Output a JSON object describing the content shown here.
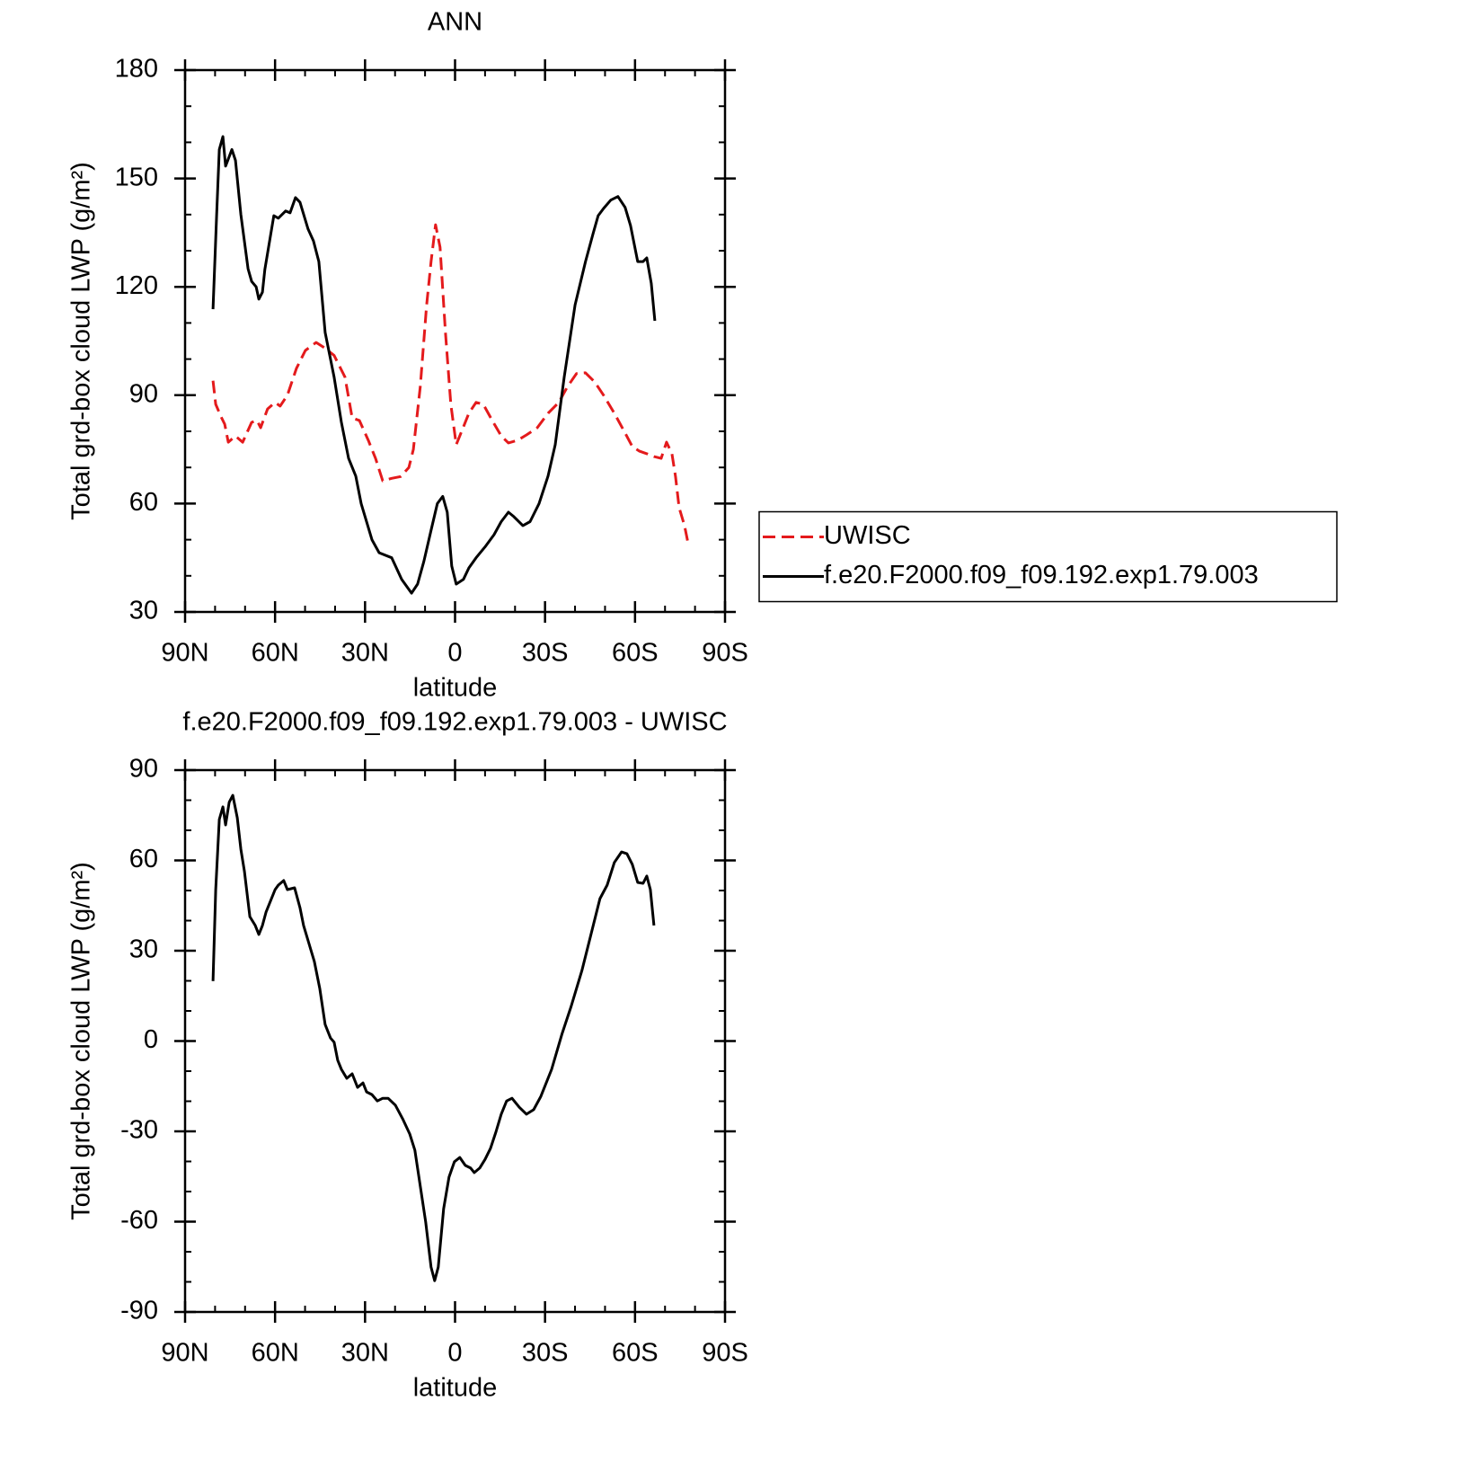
{
  "chart_data": [
    {
      "type": "line",
      "title": "ANN",
      "x_label": "latitude",
      "y_label": "Total grd-box cloud LWP (g/m²)",
      "xlim": [
        90,
        -90
      ],
      "xticks": [
        {
          "value": 90,
          "label": "90N"
        },
        {
          "value": 60,
          "label": "60N"
        },
        {
          "value": 30,
          "label": "30N"
        },
        0,
        {
          "value": -30,
          "label": "30S"
        },
        {
          "value": -60,
          "label": "60S"
        },
        {
          "value": -90,
          "label": "90S"
        }
      ],
      "ylim": [
        30,
        180
      ],
      "yticks": [
        30,
        60,
        90,
        120,
        150,
        180
      ],
      "grid": false,
      "legend": "right",
      "series": [
        {
          "name": "UWISC",
          "color": "#e41a1c",
          "linestyle": "dashed",
          "x": [
            80.7,
            79.8,
            78,
            76.8,
            75.6,
            73.2,
            70.8,
            67.8,
            66,
            64.8,
            62.5,
            60,
            58.3,
            55.9,
            52.9,
            49.9,
            46.3,
            43.3,
            40.3,
            36.7,
            34.3,
            31.9,
            28.9,
            26.5,
            24.1,
            21.1,
            18.1,
            15.4,
            13.9,
            11.6,
            9.5,
            8,
            6.5,
            5,
            3.2,
            1.4,
            -0.4,
            -2.8,
            -4.6,
            -7,
            -9.4,
            -12.4,
            -15.4,
            -17.8,
            -20.8,
            -23.8,
            -27.4,
            -31,
            -34.6,
            -37.5,
            -40.5,
            -43.5,
            -46.5,
            -49.5,
            -53.1,
            -56.4,
            -59.1,
            -61.5,
            -63.9,
            -66.3,
            -68.7,
            -70.5,
            -72.3,
            -73.5,
            -74.7,
            -76.5,
            -77.7
          ],
          "values": [
            94,
            87.5,
            84,
            82,
            77,
            78.7,
            77,
            82.5,
            83,
            81,
            86.2,
            88,
            87,
            90,
            97.4,
            102.4,
            104.6,
            103,
            101,
            95,
            83.7,
            83,
            77.5,
            72.5,
            66.3,
            67,
            67.5,
            70,
            75,
            92.4,
            114.8,
            127,
            137.2,
            131,
            107.4,
            87.5,
            76.3,
            81.2,
            85,
            88,
            87.5,
            83,
            78.7,
            76.8,
            77.5,
            79,
            81,
            85,
            88,
            92.4,
            96,
            96.2,
            93.7,
            90,
            85,
            80,
            75.8,
            74.5,
            73.8,
            73,
            72.5,
            77,
            73.8,
            67.5,
            58.9,
            53.9,
            49
          ]
        },
        {
          "name": "f.e20.F2000.f09_f09.192.exp1.79.003",
          "color": "#000000",
          "linestyle": "solid",
          "x": [
            80.7,
            79.5,
            78.6,
            77.4,
            76.5,
            74.4,
            73.2,
            71.4,
            69,
            67.8,
            66.3,
            65.4,
            64.2,
            63.4,
            60.4,
            58.9,
            56.5,
            55,
            53.2,
            51.7,
            49,
            47.2,
            45.4,
            43.3,
            40.3,
            37.9,
            35.5,
            33.1,
            31.3,
            27.7,
            25.3,
            21.1,
            17.8,
            14.5,
            12.5,
            10.4,
            8,
            5.9,
            4.1,
            2.6,
            1.1,
            -0.4,
            -2.8,
            -4.6,
            -7,
            -10,
            -13,
            -15.4,
            -17.8,
            -19.6,
            -22.6,
            -25,
            -28,
            -31,
            -33.4,
            -36.4,
            -40,
            -43.5,
            -46,
            -47.7,
            -49.5,
            -51.9,
            -54.3,
            -56.7,
            -58.5,
            -60.9,
            -62.7,
            -63.9,
            -65.4,
            -66.6
          ],
          "values": [
            113.8,
            139.7,
            158,
            161.6,
            153.4,
            158,
            155,
            140,
            125,
            121.5,
            120,
            116.6,
            118.5,
            124.8,
            139.7,
            139,
            141,
            140.5,
            144.7,
            143.4,
            136,
            132.7,
            127,
            107.4,
            95,
            82.5,
            72.5,
            67.6,
            60,
            50,
            46.4,
            45,
            39,
            35.2,
            37.7,
            44,
            52.6,
            60,
            62,
            57.6,
            42.7,
            37.7,
            39,
            42.2,
            45,
            48,
            51.4,
            55,
            57.6,
            56.4,
            53.9,
            55,
            60,
            67.6,
            76.3,
            95,
            115,
            127,
            134.7,
            139.7,
            141.7,
            144,
            145,
            142,
            137,
            127,
            127,
            128,
            121,
            110.6
          ]
        }
      ]
    },
    {
      "type": "line",
      "title": "f.e20.F2000.f09_f09.192.exp1.79.003  -  UWISC",
      "x_label": "latitude",
      "y_label": "Total grd-box cloud LWP (g/m²)",
      "xlim": [
        90,
        -90
      ],
      "xticks": [
        {
          "value": 90,
          "label": "90N"
        },
        {
          "value": 60,
          "label": "60N"
        },
        {
          "value": 30,
          "label": "30N"
        },
        0,
        {
          "value": -30,
          "label": "30S"
        },
        {
          "value": -60,
          "label": "60S"
        },
        {
          "value": -90,
          "label": "90S"
        }
      ],
      "ylim": [
        -90,
        90
      ],
      "yticks": [
        -90,
        -60,
        -30,
        0,
        30,
        60,
        90
      ],
      "grid": false,
      "series": [
        {
          "color": "#000000",
          "linestyle": "solid",
          "x": [
            80.7,
            79.8,
            78.6,
            77.4,
            76.5,
            75.3,
            74.1,
            72.6,
            71.4,
            70.2,
            68.4,
            66.6,
            65.4,
            64.2,
            63,
            60,
            58.9,
            57.1,
            55.9,
            53.5,
            51.7,
            50.5,
            48.7,
            46.9,
            45.1,
            43.3,
            41.5,
            40.3,
            39.1,
            37.9,
            36.1,
            34.3,
            32.5,
            30.7,
            29.5,
            27.7,
            25.9,
            24.1,
            22.3,
            19.9,
            17.5,
            15.1,
            13.4,
            11.6,
            9.8,
            8,
            6.8,
            5.6,
            3.8,
            2,
            0.2,
            -1.6,
            -3.4,
            -5.2,
            -6.4,
            -8.2,
            -10,
            -11.8,
            -13.6,
            -15.4,
            -17.2,
            -19,
            -21.4,
            -23.8,
            -26.2,
            -28.6,
            -32.2,
            -35.7,
            -38.7,
            -42.3,
            -45.3,
            -48.3,
            -50.7,
            -53.1,
            -55.5,
            -57.3,
            -59.1,
            -60.9,
            -62.7,
            -63.9,
            -65.1,
            -66.3
          ],
          "values": [
            19.9,
            50.3,
            73.6,
            77.8,
            71.8,
            79.3,
            81.6,
            74.2,
            63.7,
            56.3,
            41.3,
            38.4,
            35.4,
            38.4,
            42.8,
            50.3,
            51.8,
            53.3,
            50.3,
            50.9,
            44.3,
            38.4,
            32.4,
            26.4,
            17.5,
            5.5,
            1,
            -0.4,
            -6.4,
            -9.4,
            -12.4,
            -10.9,
            -15.4,
            -13.9,
            -16.9,
            -17.8,
            -19.9,
            -19,
            -19,
            -21.3,
            -25.8,
            -30.9,
            -36.3,
            -48.2,
            -60.1,
            -75.1,
            -79.6,
            -75.1,
            -55.7,
            -45.2,
            -40.1,
            -38.7,
            -41.3,
            -42.2,
            -43.7,
            -42.2,
            -39.3,
            -35.7,
            -30.3,
            -24.3,
            -19.9,
            -19,
            -22,
            -24.3,
            -22.8,
            -18.4,
            -9.4,
            2.5,
            11.5,
            23.4,
            35.4,
            47.3,
            51.8,
            59.3,
            62.8,
            62.2,
            58.7,
            52.7,
            52.4,
            54.8,
            50.3,
            38.4
          ]
        }
      ]
    }
  ]
}
